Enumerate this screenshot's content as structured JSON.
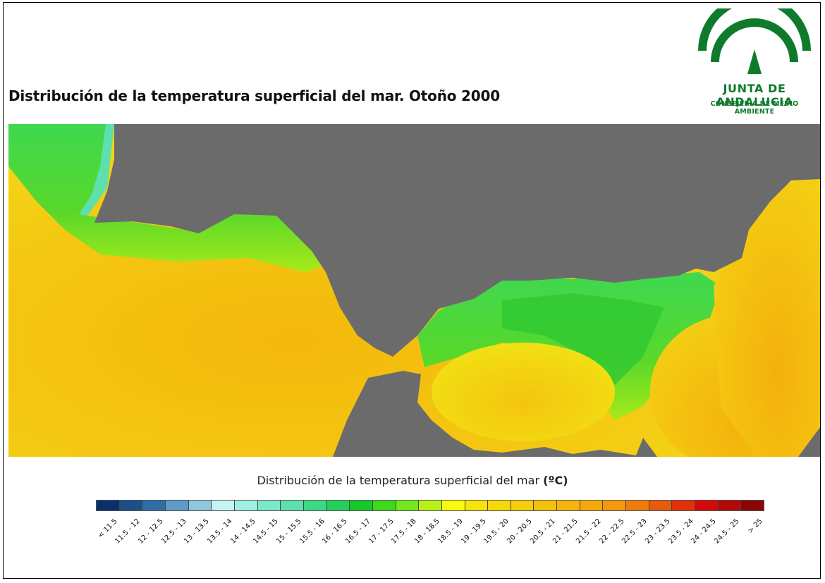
{
  "title": "Distribución de la temperatura superficial del mar. Otoño 2000",
  "logo": {
    "brand": "JUNTA DE ANDALUCIA",
    "department": "CONSEJERÍA DE MEDIO AMBIENTE",
    "color": "#0f7a2b"
  },
  "map": {
    "land_color": "#6b6b6b",
    "warm_sea_color": "#f2c218",
    "cool_sea_color": "#3fc83a",
    "coastal_color": "#7fe0b8"
  },
  "legend": {
    "title": "Distribución de la temperatura superficial del mar",
    "unit": "(ºC)",
    "classes": [
      {
        "label": "< 11.5",
        "color": "#08306b"
      },
      {
        "label": "11.5 - 12",
        "color": "#1c4f8a"
      },
      {
        "label": "12 - 12.5",
        "color": "#2f6ea5"
      },
      {
        "label": "12.5 - 13",
        "color": "#5b9cc8"
      },
      {
        "label": "13 - 13.5",
        "color": "#8ec8de"
      },
      {
        "label": "13.5 - 14",
        "color": "#c4f4f6"
      },
      {
        "label": "14 - 14.5",
        "color": "#9ff0e2"
      },
      {
        "label": "14.5 - 15",
        "color": "#7be8c8"
      },
      {
        "label": "15 - 15.5",
        "color": "#5ee0ae"
      },
      {
        "label": "15.5 - 16",
        "color": "#3dd885"
      },
      {
        "label": "16 - 16.5",
        "color": "#22d05a"
      },
      {
        "label": "16.5 - 17",
        "color": "#16c82a"
      },
      {
        "label": "17 - 17.5",
        "color": "#3ed81c"
      },
      {
        "label": "17.5 - 18",
        "color": "#72e81e"
      },
      {
        "label": "18 - 18.5",
        "color": "#b8f214"
      },
      {
        "label": "18.5 - 19",
        "color": "#fafa10"
      },
      {
        "label": "19 - 19.5",
        "color": "#f6e40c"
      },
      {
        "label": "19.5 - 20",
        "color": "#f6d80c"
      },
      {
        "label": "20 - 20.5",
        "color": "#f6cc0c"
      },
      {
        "label": "20.5 - 21",
        "color": "#f4c00c"
      },
      {
        "label": "21 - 21.5",
        "color": "#f4b40c"
      },
      {
        "label": "21.5 - 22",
        "color": "#f4a80c"
      },
      {
        "label": "22 - 22.5",
        "color": "#f4980c"
      },
      {
        "label": "22.5 - 23",
        "color": "#ee7c0c"
      },
      {
        "label": "23 - 23.5",
        "color": "#e85a0c"
      },
      {
        "label": "23.5 - 24",
        "color": "#e0300c"
      },
      {
        "label": "24 - 24.5",
        "color": "#d40a0a"
      },
      {
        "label": "24.5 - 25",
        "color": "#b40808"
      },
      {
        "label": "> 25",
        "color": "#8a0606"
      }
    ]
  }
}
